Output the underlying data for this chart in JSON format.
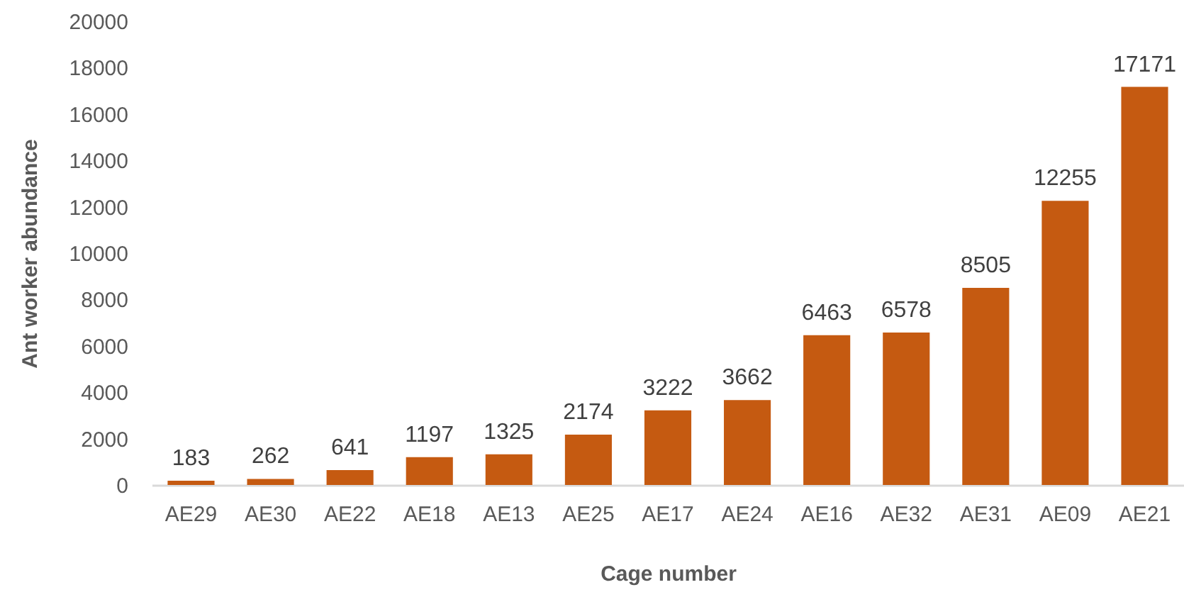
{
  "chart_data": {
    "type": "bar",
    "xlabel": "Cage number",
    "ylabel": "Ant worker abundance",
    "categories": [
      "AE29",
      "AE30",
      "AE22",
      "AE18",
      "AE13",
      "AE25",
      "AE17",
      "AE24",
      "AE16",
      "AE32",
      "AE31",
      "AE09",
      "AE21"
    ],
    "values": [
      183,
      262,
      641,
      1197,
      1325,
      2174,
      3222,
      3662,
      6463,
      6578,
      8505,
      12255,
      17171
    ],
    "color": "#c55a11",
    "ylim": [
      0,
      20000
    ],
    "yticks": [
      0,
      2000,
      4000,
      6000,
      8000,
      10000,
      12000,
      14000,
      16000,
      18000,
      20000
    ],
    "data_labels": true
  }
}
